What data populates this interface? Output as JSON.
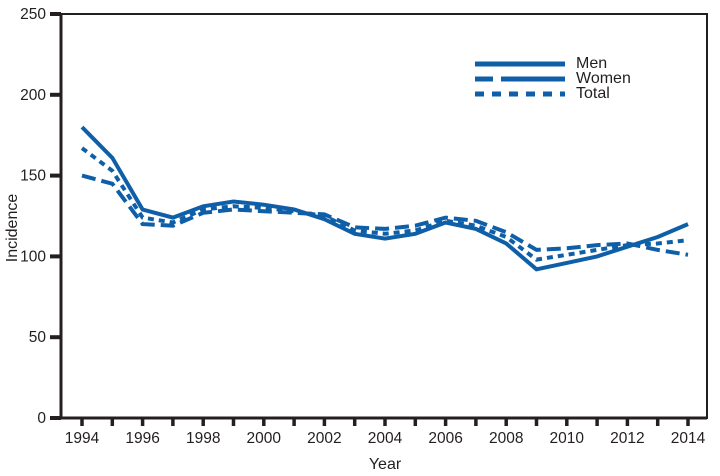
{
  "figure": {
    "background": "#ffffff",
    "line_color": "#0F5FA8",
    "axis_color": "#231f20",
    "text_color": "#231f20"
  },
  "chart_data": {
    "type": "line",
    "title": "",
    "xlabel": "Year",
    "ylabel": "Incidence",
    "grid": false,
    "legend_position": "top-right",
    "ylim": [
      0,
      250
    ],
    "yticks": [
      0,
      50,
      100,
      150,
      200,
      250
    ],
    "x": [
      1994,
      1995,
      1996,
      1997,
      1998,
      1999,
      2000,
      2001,
      2002,
      2003,
      2004,
      2005,
      2006,
      2007,
      2008,
      2009,
      2010,
      2011,
      2012,
      2013,
      2014
    ],
    "xtick_labels": [
      "1994",
      "1996",
      "1998",
      "2000",
      "2002",
      "2004",
      "2006",
      "2008",
      "2010",
      "2012",
      "2014"
    ],
    "series": [
      {
        "name": "Men",
        "style": "solid",
        "values": [
          180,
          161,
          129,
          124,
          131,
          134,
          132,
          129,
          123,
          114,
          111,
          114,
          121,
          117,
          108,
          92,
          96,
          100,
          106,
          112,
          120
        ]
      },
      {
        "name": "Women",
        "style": "long-dash",
        "values": [
          150,
          145,
          120,
          119,
          127,
          129,
          128,
          127,
          126,
          118,
          117,
          119,
          124,
          122,
          115,
          104,
          105,
          107,
          108,
          104,
          101
        ]
      },
      {
        "name": "Total",
        "style": "short-dash",
        "values": [
          167,
          153,
          124,
          121,
          129,
          131,
          130,
          128,
          125,
          116,
          114,
          116,
          122,
          119,
          112,
          98,
          101,
          104,
          107,
          108,
          110
        ]
      }
    ]
  }
}
